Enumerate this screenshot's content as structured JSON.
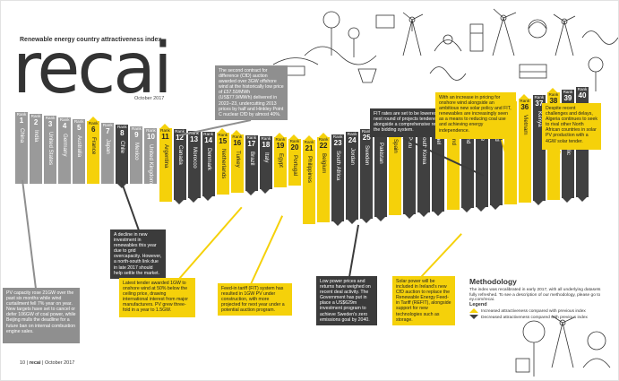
{
  "header": {
    "subtitle": "Renewable energy country attractiveness index",
    "logo": "recai",
    "date": "October 2017"
  },
  "colors": {
    "increased": "#f5d10a",
    "decreased": "#404040",
    "neutral": "#9a9a9a",
    "text": "#333333"
  },
  "rank_label": "Rank",
  "rankings": [
    {
      "rank": "1",
      "country": "China",
      "trend": "neutral"
    },
    {
      "rank": "2",
      "country": "India",
      "trend": "neutral"
    },
    {
      "rank": "3",
      "country": "United States",
      "trend": "neutral"
    },
    {
      "rank": "4",
      "country": "Germany",
      "trend": "neutral"
    },
    {
      "rank": "5",
      "country": "Australia",
      "trend": "neutral"
    },
    {
      "rank": "6",
      "country": "France",
      "trend": "up"
    },
    {
      "rank": "7",
      "country": "Japan",
      "trend": "neutral"
    },
    {
      "rank": "8",
      "country": "Chile",
      "trend": "down"
    },
    {
      "rank": "9",
      "country": "Mexico",
      "trend": "neutral"
    },
    {
      "rank": "10",
      "country": "United Kingdom",
      "trend": "neutral"
    },
    {
      "rank": "11",
      "country": "Argentina",
      "trend": "up"
    },
    {
      "rank": "12",
      "country": "Canada",
      "trend": "down"
    },
    {
      "rank": "13",
      "country": "Morocco",
      "trend": "down"
    },
    {
      "rank": "14",
      "country": "Denmark",
      "trend": "down"
    },
    {
      "rank": "15",
      "country": "Netherlands",
      "trend": "up"
    },
    {
      "rank": "16",
      "country": "Turkey",
      "trend": "up"
    },
    {
      "rank": "17",
      "country": "Brazil",
      "trend": "down"
    },
    {
      "rank": "18",
      "country": "Italy",
      "trend": "down"
    },
    {
      "rank": "19",
      "country": "Egypt",
      "trend": "up"
    },
    {
      "rank": "20",
      "country": "Portugal",
      "trend": "up"
    },
    {
      "rank": "21",
      "country": "Philippines",
      "trend": "up"
    },
    {
      "rank": "22",
      "country": "Belgium",
      "trend": "up"
    },
    {
      "rank": "23",
      "country": "South Africa",
      "trend": "down"
    },
    {
      "rank": "24",
      "country": "Jordan",
      "trend": "down"
    },
    {
      "rank": "25",
      "country": "Sweden",
      "trend": "down"
    },
    {
      "rank": "26",
      "country": "Pakistan",
      "trend": "down"
    },
    {
      "rank": "27",
      "country": "Spain",
      "trend": "up"
    },
    {
      "rank": "28",
      "country": "Peru",
      "trend": "down"
    },
    {
      "rank": "29",
      "country": "South Korea",
      "trend": "down"
    },
    {
      "rank": "30",
      "country": "Israel",
      "trend": "down"
    },
    {
      "rank": "31",
      "country": "Ireland",
      "trend": "up"
    },
    {
      "rank": "32",
      "country": "Finland",
      "trend": "down"
    },
    {
      "rank": "33",
      "country": "Greece",
      "trend": "down"
    },
    {
      "rank": "34",
      "country": "Thailand",
      "trend": "down"
    },
    {
      "rank": "35",
      "country": "Uruguay",
      "trend": "up"
    },
    {
      "rank": "36",
      "country": "Vietnam",
      "trend": "up"
    },
    {
      "rank": "37",
      "country": "Kenya",
      "trend": "down"
    },
    {
      "rank": "38",
      "country": "Algeria",
      "trend": "up"
    },
    {
      "rank": "39",
      "country": "Dominican Republic",
      "trend": "down"
    },
    {
      "rank": "40",
      "country": "Kazakhstan",
      "trend": "down"
    }
  ],
  "annotations": [
    {
      "id": "uk-cfd",
      "style": "grey",
      "text": "The second contract for difference (CfD) auction awarded over 3GW offshore wind at the historically low price of £57.50/MWh (US$77.9/MWh) delivered in 2022–23, undercutting 2013 prices by half and Hinkley Point C nuclear CfD by almost 40%."
    },
    {
      "id": "china-pv",
      "style": "grey",
      "text": "PV capacity rose 21GW over the past six months while wind curtailment fell 7% year on year. New targets have set to cancel or defer 106GW of coal power, while Beijing mulls the deadline for a future ban on internal combustion engine sales."
    },
    {
      "id": "chile",
      "style": "dark",
      "text": "A decline in new investment in renewables this year due to grid overcapacity. However, a north-south link due in late 2017 should help settle the market."
    },
    {
      "id": "turkey",
      "style": "yellow",
      "text": "Latest tender awarded 1GW to onshore wind at 50% below the ceiling price, drawing international interest from major manufacturers. PV grew three-fold in a year to 1.5GW."
    },
    {
      "id": "egypt",
      "style": "yellow",
      "text": "Feed-in tariff (FIT) system has resulted in 1GW PV under construction, with more projected for next year under a potential auction program."
    },
    {
      "id": "jordan",
      "style": "dark",
      "text": "Low power prices and returns have weighed on recent deal activity. The Government has put in place a US$629m investment program to achieve Sweden's zero emissions goal by 2040."
    },
    {
      "id": "ireland",
      "style": "yellow",
      "text": "Solar power will be included in Ireland's new CfD auction to replace the Renewable Energy Feed-in Tariff (REFIT), alongside support for new technologies such as storage."
    },
    {
      "id": "thailand",
      "style": "dark",
      "text": "FIT rates are set to be lowered in the next round of projects tendered in 2018, alongside a comprehensive review of the bidding system."
    },
    {
      "id": "uruguay",
      "style": "yellow",
      "text": "With an increase in pricing for onshore wind alongside an ambitious new solar policy and FIT, renewables are increasingly seen as a means to reducing coal use and achieving energy independence."
    },
    {
      "id": "algeria",
      "style": "yellow",
      "text": "Despite recent challenges and delays, Algeria continues to seek to rival other North African countries in solar PV production with a 4GW solar tender."
    }
  ],
  "methodology": {
    "title": "Methodology",
    "text": "The index was recalibrated in early 2017, with all underlying datasets fully refreshed. To see a description of our methodology, please go to ey.com/recai."
  },
  "legend": {
    "title": "Legend",
    "increased": "Increased attractiveness compared with previous index",
    "decreased": "Decreased attractiveness compared with previous index"
  },
  "footer": {
    "page": "10",
    "brand": "recai",
    "date": "October 2017"
  }
}
